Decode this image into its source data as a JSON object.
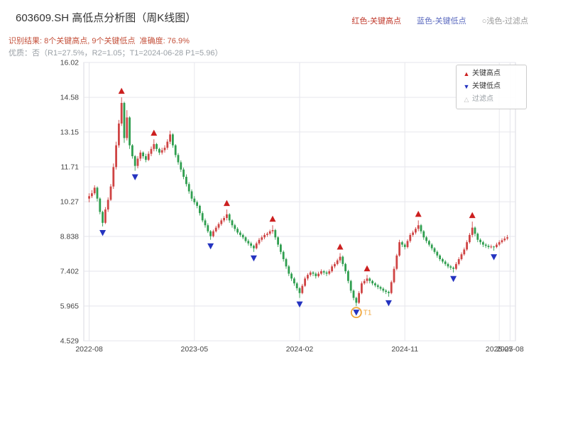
{
  "page": {
    "title": "603609.SH 高低点分析图（周K线图）",
    "top_legend": {
      "high": "红色-关键高点",
      "low": "蓝色-关键低点",
      "filter": "○浅色-过滤点"
    },
    "result_line": "识别结果: 8个关键高点, 9个关键低点  准确度: 76.9%",
    "quality_line": "优质：否（R1=27.5%，R2=1.05；T1=2024-06-28 P1=5.96）",
    "colors": {
      "title": "#333333",
      "result_text": "#c4503a",
      "quality_text": "#9aa0a6"
    }
  },
  "legend_box": {
    "high_label": "关键高点",
    "low_label": "关键低点",
    "filter_label": "过滤点"
  },
  "icons": {
    "up_triangle": "▲",
    "down_triangle": "▼",
    "open_triangle": "△"
  },
  "chart_data": {
    "type": "candlestick",
    "title": "603609.SH 高低点分析图（周K线图）",
    "x_unit": "week",
    "grid": true,
    "y_min": 4.529,
    "y_max": 16.02,
    "y_ticks": [
      {
        "v": 16.02,
        "label": "16.02"
      },
      {
        "v": 14.58,
        "label": "14.58"
      },
      {
        "v": 13.15,
        "label": "13.15"
      },
      {
        "v": 11.71,
        "label": "11.71"
      },
      {
        "v": 10.27,
        "label": "10.27"
      },
      {
        "v": 8.838,
        "label": "8.838"
      },
      {
        "v": 7.402,
        "label": "7.402"
      },
      {
        "v": 5.965,
        "label": "5.965"
      },
      {
        "v": 4.529,
        "label": "4.529"
      }
    ],
    "x_ticks": [
      {
        "i": 0,
        "label": "2022-08"
      },
      {
        "i": 39,
        "label": "2023-05"
      },
      {
        "i": 78,
        "label": "2024-02"
      },
      {
        "i": 117,
        "label": "2024-11"
      },
      {
        "i": 152,
        "label": "2025-07"
      },
      {
        "i": 156,
        "label": "2025-08"
      }
    ],
    "colors": {
      "up": "#cf4444",
      "down": "#2f9e4f",
      "key_high": "#cc1f1f",
      "key_low": "#2433c0",
      "filter": "#c0c0c0",
      "t1": "#f0a63c",
      "grid": "#e6e6ec",
      "frame": "#d9d9e0",
      "tick_text": "#444444"
    },
    "candles": [
      [
        10.4,
        10.62,
        10.25,
        10.5
      ],
      [
        10.5,
        10.75,
        10.42,
        10.62
      ],
      [
        10.62,
        10.95,
        10.55,
        10.85
      ],
      [
        10.85,
        10.9,
        10.28,
        10.4
      ],
      [
        10.4,
        10.45,
        9.75,
        9.85
      ],
      [
        9.85,
        9.9,
        9.25,
        9.4
      ],
      [
        9.4,
        10.05,
        9.35,
        9.95
      ],
      [
        9.95,
        10.45,
        9.85,
        10.35
      ],
      [
        10.35,
        11.0,
        10.3,
        10.9
      ],
      [
        10.9,
        11.85,
        10.8,
        11.7
      ],
      [
        11.7,
        12.75,
        11.6,
        12.6
      ],
      [
        12.6,
        13.65,
        12.5,
        13.5
      ],
      [
        13.5,
        14.58,
        13.4,
        14.35
      ],
      [
        14.35,
        14.4,
        12.7,
        12.9
      ],
      [
        12.9,
        14.05,
        12.8,
        13.75
      ],
      [
        13.75,
        13.8,
        12.45,
        12.6
      ],
      [
        12.6,
        12.65,
        12.05,
        12.15
      ],
      [
        12.15,
        12.2,
        11.55,
        11.75
      ],
      [
        11.75,
        12.15,
        11.65,
        12.05
      ],
      [
        12.05,
        12.4,
        11.95,
        12.3
      ],
      [
        12.3,
        12.35,
        12.05,
        12.15
      ],
      [
        12.15,
        12.25,
        11.9,
        12.0
      ],
      [
        12.0,
        12.35,
        11.95,
        12.25
      ],
      [
        12.25,
        12.55,
        12.15,
        12.45
      ],
      [
        12.45,
        12.85,
        12.35,
        12.65
      ],
      [
        12.65,
        12.7,
        12.35,
        12.45
      ],
      [
        12.45,
        12.5,
        12.2,
        12.3
      ],
      [
        12.3,
        12.5,
        12.22,
        12.4
      ],
      [
        12.4,
        12.6,
        12.3,
        12.5
      ],
      [
        12.5,
        12.85,
        12.42,
        12.75
      ],
      [
        12.75,
        13.2,
        12.65,
        13.05
      ],
      [
        13.05,
        13.1,
        12.5,
        12.6
      ],
      [
        12.6,
        12.65,
        12.1,
        12.2
      ],
      [
        12.2,
        12.28,
        11.8,
        11.9
      ],
      [
        11.9,
        11.98,
        11.5,
        11.6
      ],
      [
        11.6,
        11.68,
        11.2,
        11.3
      ],
      [
        11.3,
        11.4,
        10.9,
        11.0
      ],
      [
        11.0,
        11.08,
        10.6,
        10.7
      ],
      [
        10.7,
        10.78,
        10.3,
        10.4
      ],
      [
        10.4,
        10.5,
        10.15,
        10.25
      ],
      [
        10.25,
        10.32,
        10.0,
        10.1
      ],
      [
        10.1,
        10.15,
        9.7,
        9.8
      ],
      [
        9.8,
        9.88,
        9.42,
        9.5
      ],
      [
        9.5,
        9.58,
        9.2,
        9.3
      ],
      [
        9.3,
        9.38,
        8.98,
        9.05
      ],
      [
        9.05,
        9.1,
        8.7,
        8.85
      ],
      [
        8.85,
        9.12,
        8.8,
        9.05
      ],
      [
        9.05,
        9.28,
        9.0,
        9.2
      ],
      [
        9.2,
        9.42,
        9.12,
        9.35
      ],
      [
        9.35,
        9.58,
        9.28,
        9.5
      ],
      [
        9.5,
        9.68,
        9.42,
        9.6
      ],
      [
        9.6,
        9.95,
        9.5,
        9.75
      ],
      [
        9.75,
        9.8,
        9.4,
        9.5
      ],
      [
        9.5,
        9.55,
        9.2,
        9.3
      ],
      [
        9.3,
        9.36,
        9.05,
        9.15
      ],
      [
        9.15,
        9.22,
        8.92,
        9.0
      ],
      [
        9.0,
        9.08,
        8.82,
        8.9
      ],
      [
        8.9,
        8.96,
        8.72,
        8.8
      ],
      [
        8.8,
        8.85,
        8.58,
        8.65
      ],
      [
        8.65,
        8.72,
        8.46,
        8.55
      ],
      [
        8.55,
        8.62,
        8.36,
        8.45
      ],
      [
        8.45,
        8.5,
        8.2,
        8.35
      ],
      [
        8.35,
        8.62,
        8.3,
        8.55
      ],
      [
        8.55,
        8.78,
        8.48,
        8.7
      ],
      [
        8.7,
        8.88,
        8.62,
        8.8
      ],
      [
        8.8,
        8.98,
        8.72,
        8.9
      ],
      [
        8.9,
        9.02,
        8.82,
        8.95
      ],
      [
        8.95,
        9.12,
        8.88,
        9.05
      ],
      [
        9.05,
        9.3,
        8.95,
        9.1
      ],
      [
        9.1,
        9.15,
        8.7,
        8.8
      ],
      [
        8.8,
        8.85,
        8.4,
        8.5
      ],
      [
        8.5,
        8.55,
        8.1,
        8.2
      ],
      [
        8.2,
        8.26,
        7.8,
        7.9
      ],
      [
        7.9,
        7.96,
        7.5,
        7.6
      ],
      [
        7.6,
        7.66,
        7.2,
        7.3
      ],
      [
        7.3,
        7.36,
        7.0,
        7.1
      ],
      [
        7.1,
        7.16,
        6.8,
        6.9
      ],
      [
        6.9,
        6.96,
        6.6,
        6.7
      ],
      [
        6.7,
        6.75,
        6.3,
        6.5
      ],
      [
        6.5,
        6.88,
        6.45,
        6.8
      ],
      [
        6.8,
        7.18,
        6.75,
        7.1
      ],
      [
        7.1,
        7.32,
        7.02,
        7.25
      ],
      [
        7.25,
        7.42,
        7.18,
        7.35
      ],
      [
        7.35,
        7.4,
        7.2,
        7.3
      ],
      [
        7.3,
        7.36,
        7.1,
        7.2
      ],
      [
        7.2,
        7.38,
        7.14,
        7.3
      ],
      [
        7.3,
        7.48,
        7.24,
        7.4
      ],
      [
        7.4,
        7.45,
        7.26,
        7.35
      ],
      [
        7.35,
        7.42,
        7.2,
        7.3
      ],
      [
        7.3,
        7.48,
        7.24,
        7.4
      ],
      [
        7.4,
        7.68,
        7.34,
        7.6
      ],
      [
        7.6,
        7.78,
        7.52,
        7.7
      ],
      [
        7.7,
        7.92,
        7.64,
        7.85
      ],
      [
        7.85,
        8.15,
        7.75,
        8.0
      ],
      [
        8.0,
        8.05,
        7.6,
        7.7
      ],
      [
        7.7,
        7.75,
        7.3,
        7.4
      ],
      [
        7.4,
        7.46,
        6.9,
        7.0
      ],
      [
        7.0,
        7.05,
        6.5,
        6.6
      ],
      [
        6.6,
        6.65,
        6.2,
        6.3
      ],
      [
        6.3,
        6.35,
        5.96,
        6.1
      ],
      [
        6.1,
        6.58,
        6.05,
        6.5
      ],
      [
        6.5,
        6.98,
        6.45,
        6.9
      ],
      [
        6.9,
        7.08,
        6.84,
        7.0
      ],
      [
        7.0,
        7.25,
        6.9,
        7.1
      ],
      [
        7.1,
        7.15,
        6.9,
        7.0
      ],
      [
        7.0,
        7.05,
        6.82,
        6.9
      ],
      [
        6.9,
        6.95,
        6.74,
        6.82
      ],
      [
        6.82,
        6.88,
        6.66,
        6.75
      ],
      [
        6.75,
        6.8,
        6.6,
        6.68
      ],
      [
        6.68,
        6.74,
        6.52,
        6.6
      ],
      [
        6.6,
        6.66,
        6.46,
        6.55
      ],
      [
        6.55,
        6.6,
        6.35,
        6.5
      ],
      [
        6.5,
        7.02,
        6.45,
        6.95
      ],
      [
        6.95,
        7.6,
        6.9,
        7.5
      ],
      [
        7.5,
        8.12,
        7.44,
        8.05
      ],
      [
        8.05,
        8.7,
        8.0,
        8.6
      ],
      [
        8.6,
        8.66,
        8.4,
        8.5
      ],
      [
        8.5,
        8.56,
        8.3,
        8.4
      ],
      [
        8.4,
        8.72,
        8.34,
        8.65
      ],
      [
        8.65,
        8.98,
        8.58,
        8.9
      ],
      [
        8.9,
        9.08,
        8.82,
        9.0
      ],
      [
        9.0,
        9.22,
        8.92,
        9.15
      ],
      [
        9.15,
        9.5,
        9.05,
        9.3
      ],
      [
        9.3,
        9.35,
        8.95,
        9.05
      ],
      [
        9.05,
        9.1,
        8.7,
        8.8
      ],
      [
        8.8,
        8.86,
        8.56,
        8.65
      ],
      [
        8.65,
        8.7,
        8.42,
        8.5
      ],
      [
        8.5,
        8.56,
        8.26,
        8.35
      ],
      [
        8.35,
        8.4,
        8.12,
        8.2
      ],
      [
        8.2,
        8.26,
        7.96,
        8.05
      ],
      [
        8.05,
        8.1,
        7.82,
        7.9
      ],
      [
        7.9,
        7.96,
        7.72,
        7.8
      ],
      [
        7.8,
        7.86,
        7.62,
        7.7
      ],
      [
        7.7,
        7.76,
        7.52,
        7.6
      ],
      [
        7.6,
        7.66,
        7.46,
        7.55
      ],
      [
        7.55,
        7.6,
        7.35,
        7.5
      ],
      [
        7.5,
        7.78,
        7.45,
        7.7
      ],
      [
        7.7,
        7.98,
        7.64,
        7.9
      ],
      [
        7.9,
        8.18,
        7.84,
        8.1
      ],
      [
        8.1,
        8.38,
        8.04,
        8.3
      ],
      [
        8.3,
        8.68,
        8.24,
        8.6
      ],
      [
        8.6,
        8.98,
        8.54,
        8.9
      ],
      [
        8.9,
        9.45,
        8.8,
        9.2
      ],
      [
        9.2,
        9.25,
        8.85,
        8.95
      ],
      [
        8.95,
        9.0,
        8.6,
        8.7
      ],
      [
        8.7,
        8.76,
        8.5,
        8.6
      ],
      [
        8.6,
        8.66,
        8.4,
        8.5
      ],
      [
        8.5,
        8.56,
        8.36,
        8.45
      ],
      [
        8.45,
        8.52,
        8.32,
        8.4
      ],
      [
        8.4,
        8.5,
        8.34,
        8.42
      ],
      [
        8.42,
        8.45,
        8.25,
        8.4
      ],
      [
        8.4,
        8.58,
        8.35,
        8.5
      ],
      [
        8.5,
        8.68,
        8.44,
        8.6
      ],
      [
        8.6,
        8.76,
        8.54,
        8.68
      ],
      [
        8.68,
        8.84,
        8.62,
        8.75
      ],
      [
        8.75,
        8.9,
        8.68,
        8.8
      ]
    ],
    "key_highs": [
      {
        "i": 12,
        "price": 14.58
      },
      {
        "i": 24,
        "price": 12.85
      },
      {
        "i": 51,
        "price": 9.95
      },
      {
        "i": 68,
        "price": 9.3
      },
      {
        "i": 93,
        "price": 8.15
      },
      {
        "i": 103,
        "price": 7.25
      },
      {
        "i": 122,
        "price": 9.5
      },
      {
        "i": 142,
        "price": 9.45
      }
    ],
    "key_lows": [
      {
        "i": 5,
        "price": 9.25
      },
      {
        "i": 17,
        "price": 11.55
      },
      {
        "i": 45,
        "price": 8.7
      },
      {
        "i": 61,
        "price": 8.2
      },
      {
        "i": 78,
        "price": 6.3
      },
      {
        "i": 99,
        "price": 5.96
      },
      {
        "i": 111,
        "price": 6.35
      },
      {
        "i": 135,
        "price": 7.35
      },
      {
        "i": 150,
        "price": 8.25
      }
    ],
    "t1_marker": {
      "i": 99,
      "price": 5.96,
      "label": "T1"
    }
  }
}
